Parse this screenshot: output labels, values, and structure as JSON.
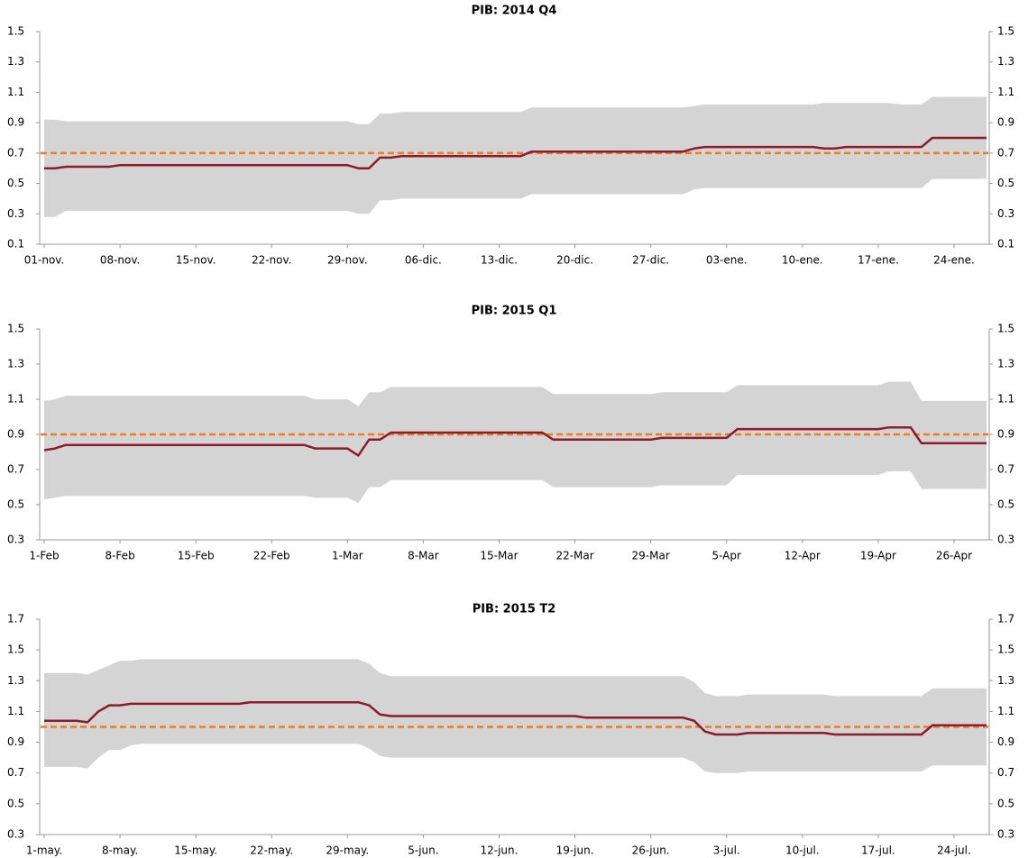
{
  "chart_data": [
    {
      "type": "line",
      "title": "PIB: 2014 Q4",
      "categories": [
        "01-nov.",
        null,
        null,
        null,
        null,
        null,
        null,
        "08-nov.",
        null,
        null,
        null,
        null,
        null,
        null,
        "15-nov.",
        null,
        null,
        null,
        null,
        null,
        null,
        "22-nov.",
        null,
        null,
        null,
        null,
        null,
        null,
        "29-nov.",
        null,
        null,
        null,
        null,
        null,
        null,
        "06-dic.",
        null,
        null,
        null,
        null,
        null,
        null,
        "13-dic.",
        null,
        null,
        null,
        null,
        null,
        null,
        "20-dic.",
        null,
        null,
        null,
        null,
        null,
        null,
        "27-dic.",
        null,
        null,
        null,
        null,
        null,
        null,
        "03-ene.",
        null,
        null,
        null,
        null,
        null,
        null,
        "10-ene.",
        null,
        null,
        null,
        null,
        null,
        null,
        "17-ene.",
        null,
        null,
        null,
        null,
        null,
        null,
        "24-ene.",
        null,
        null,
        null
      ],
      "series": [
        {
          "color": "#8c1c2c",
          "values": [
            0.6,
            0.6,
            0.61,
            0.61,
            0.61,
            0.61,
            0.61,
            0.62,
            0.62,
            0.62,
            0.62,
            0.62,
            0.62,
            0.62,
            0.62,
            0.62,
            0.62,
            0.62,
            0.62,
            0.62,
            0.62,
            0.62,
            0.62,
            0.62,
            0.62,
            0.62,
            0.62,
            0.62,
            0.62,
            0.6,
            0.6,
            0.67,
            0.67,
            0.68,
            0.68,
            0.68,
            0.68,
            0.68,
            0.68,
            0.68,
            0.68,
            0.68,
            0.68,
            0.68,
            0.68,
            0.71,
            0.71,
            0.71,
            0.71,
            0.71,
            0.71,
            0.71,
            0.71,
            0.71,
            0.71,
            0.71,
            0.71,
            0.71,
            0.71,
            0.71,
            0.73,
            0.74,
            0.74,
            0.74,
            0.74,
            0.74,
            0.74,
            0.74,
            0.74,
            0.74,
            0.74,
            0.74,
            0.73,
            0.73,
            0.74,
            0.74,
            0.74,
            0.74,
            0.74,
            0.74,
            0.74,
            0.74,
            0.8,
            0.8,
            0.8,
            0.8,
            0.8,
            0.8
          ]
        }
      ],
      "band": {
        "color": "#d4d4d4",
        "upper": [
          0.92,
          0.92,
          0.91,
          0.91,
          0.91,
          0.91,
          0.91,
          0.91,
          0.91,
          0.91,
          0.91,
          0.91,
          0.91,
          0.91,
          0.91,
          0.91,
          0.91,
          0.91,
          0.91,
          0.91,
          0.91,
          0.91,
          0.91,
          0.91,
          0.91,
          0.91,
          0.91,
          0.91,
          0.91,
          0.89,
          0.89,
          0.96,
          0.96,
          0.97,
          0.97,
          0.97,
          0.97,
          0.97,
          0.97,
          0.97,
          0.97,
          0.97,
          0.97,
          0.97,
          0.97,
          1.0,
          1.0,
          1.0,
          1.0,
          1.0,
          1.0,
          1.0,
          1.0,
          1.0,
          1.0,
          1.0,
          1.0,
          1.0,
          1.0,
          1.0,
          1.01,
          1.02,
          1.02,
          1.02,
          1.02,
          1.02,
          1.02,
          1.02,
          1.02,
          1.02,
          1.02,
          1.02,
          1.03,
          1.03,
          1.03,
          1.03,
          1.03,
          1.03,
          1.03,
          1.02,
          1.02,
          1.02,
          1.07,
          1.07,
          1.07,
          1.07,
          1.07,
          1.07
        ],
        "lower": [
          0.28,
          0.28,
          0.32,
          0.32,
          0.32,
          0.32,
          0.32,
          0.32,
          0.32,
          0.32,
          0.32,
          0.32,
          0.32,
          0.32,
          0.32,
          0.32,
          0.32,
          0.32,
          0.32,
          0.32,
          0.32,
          0.32,
          0.32,
          0.32,
          0.32,
          0.32,
          0.32,
          0.32,
          0.32,
          0.3,
          0.3,
          0.39,
          0.39,
          0.4,
          0.4,
          0.4,
          0.4,
          0.4,
          0.4,
          0.4,
          0.4,
          0.4,
          0.4,
          0.4,
          0.4,
          0.43,
          0.43,
          0.43,
          0.43,
          0.43,
          0.43,
          0.43,
          0.43,
          0.43,
          0.43,
          0.43,
          0.43,
          0.43,
          0.43,
          0.43,
          0.46,
          0.47,
          0.47,
          0.47,
          0.47,
          0.47,
          0.47,
          0.47,
          0.47,
          0.47,
          0.47,
          0.47,
          0.47,
          0.47,
          0.47,
          0.47,
          0.47,
          0.47,
          0.47,
          0.47,
          0.47,
          0.47,
          0.53,
          0.53,
          0.53,
          0.53,
          0.53,
          0.53
        ]
      },
      "reference": {
        "value": 0.7,
        "color": "#f07c1b"
      },
      "ylim": [
        0.1,
        1.5
      ],
      "yticks": [
        0.1,
        0.3,
        0.5,
        0.7,
        0.9,
        1.1,
        1.3,
        1.5
      ],
      "y2lim": [
        0.1,
        1.5
      ],
      "y2ticks": [
        0.1,
        0.3,
        0.5,
        0.7,
        0.9,
        1.1,
        1.3,
        1.5
      ]
    },
    {
      "type": "line",
      "title": "PIB: 2015 Q1",
      "categories": [
        "1-Feb",
        null,
        null,
        null,
        null,
        null,
        null,
        "8-Feb",
        null,
        null,
        null,
        null,
        null,
        null,
        "15-Feb",
        null,
        null,
        null,
        null,
        null,
        null,
        "22-Feb",
        null,
        null,
        null,
        null,
        null,
        null,
        "1-Mar",
        null,
        null,
        null,
        null,
        null,
        null,
        "8-Mar",
        null,
        null,
        null,
        null,
        null,
        null,
        "15-Mar",
        null,
        null,
        null,
        null,
        null,
        null,
        "22-Mar",
        null,
        null,
        null,
        null,
        null,
        null,
        "29-Mar",
        null,
        null,
        null,
        null,
        null,
        null,
        "5-Apr",
        null,
        null,
        null,
        null,
        null,
        null,
        "12-Apr",
        null,
        null,
        null,
        null,
        null,
        null,
        "19-Apr",
        null,
        null,
        null,
        null,
        null,
        null,
        "26-Apr",
        null,
        null,
        null
      ],
      "series": [
        {
          "color": "#8c1c2c",
          "values": [
            0.81,
            0.82,
            0.84,
            0.84,
            0.84,
            0.84,
            0.84,
            0.84,
            0.84,
            0.84,
            0.84,
            0.84,
            0.84,
            0.84,
            0.84,
            0.84,
            0.84,
            0.84,
            0.84,
            0.84,
            0.84,
            0.84,
            0.84,
            0.84,
            0.84,
            0.82,
            0.82,
            0.82,
            0.82,
            0.78,
            0.87,
            0.87,
            0.91,
            0.91,
            0.91,
            0.91,
            0.91,
            0.91,
            0.91,
            0.91,
            0.91,
            0.91,
            0.91,
            0.91,
            0.91,
            0.91,
            0.91,
            0.87,
            0.87,
            0.87,
            0.87,
            0.87,
            0.87,
            0.87,
            0.87,
            0.87,
            0.87,
            0.88,
            0.88,
            0.88,
            0.88,
            0.88,
            0.88,
            0.88,
            0.93,
            0.93,
            0.93,
            0.93,
            0.93,
            0.93,
            0.93,
            0.93,
            0.93,
            0.93,
            0.93,
            0.93,
            0.93,
            0.93,
            0.94,
            0.94,
            0.94,
            0.85,
            0.85,
            0.85,
            0.85,
            0.85,
            0.85,
            0.85
          ]
        }
      ],
      "band": {
        "color": "#d4d4d4",
        "upper": [
          1.09,
          1.1,
          1.12,
          1.12,
          1.12,
          1.12,
          1.12,
          1.12,
          1.12,
          1.12,
          1.12,
          1.12,
          1.12,
          1.12,
          1.12,
          1.12,
          1.12,
          1.12,
          1.12,
          1.12,
          1.12,
          1.12,
          1.12,
          1.12,
          1.12,
          1.1,
          1.1,
          1.1,
          1.1,
          1.06,
          1.14,
          1.14,
          1.17,
          1.17,
          1.17,
          1.17,
          1.17,
          1.17,
          1.17,
          1.17,
          1.17,
          1.17,
          1.17,
          1.17,
          1.17,
          1.17,
          1.17,
          1.13,
          1.13,
          1.13,
          1.13,
          1.13,
          1.13,
          1.13,
          1.13,
          1.13,
          1.13,
          1.14,
          1.14,
          1.14,
          1.14,
          1.14,
          1.14,
          1.14,
          1.18,
          1.18,
          1.18,
          1.18,
          1.18,
          1.18,
          1.18,
          1.18,
          1.18,
          1.18,
          1.18,
          1.18,
          1.18,
          1.18,
          1.2,
          1.2,
          1.2,
          1.09,
          1.09,
          1.09,
          1.09,
          1.09,
          1.09,
          1.09
        ],
        "lower": [
          0.53,
          0.54,
          0.55,
          0.55,
          0.55,
          0.55,
          0.55,
          0.55,
          0.55,
          0.55,
          0.55,
          0.55,
          0.55,
          0.55,
          0.55,
          0.55,
          0.55,
          0.55,
          0.55,
          0.55,
          0.55,
          0.55,
          0.55,
          0.55,
          0.55,
          0.54,
          0.54,
          0.54,
          0.54,
          0.51,
          0.6,
          0.6,
          0.64,
          0.64,
          0.64,
          0.64,
          0.64,
          0.64,
          0.64,
          0.64,
          0.64,
          0.64,
          0.64,
          0.64,
          0.64,
          0.64,
          0.64,
          0.6,
          0.6,
          0.6,
          0.6,
          0.6,
          0.6,
          0.6,
          0.6,
          0.6,
          0.6,
          0.61,
          0.61,
          0.61,
          0.61,
          0.61,
          0.61,
          0.61,
          0.67,
          0.67,
          0.67,
          0.67,
          0.67,
          0.67,
          0.67,
          0.67,
          0.67,
          0.67,
          0.67,
          0.67,
          0.67,
          0.67,
          0.69,
          0.69,
          0.69,
          0.59,
          0.59,
          0.59,
          0.59,
          0.59,
          0.59,
          0.59
        ]
      },
      "reference": {
        "value": 0.9,
        "color": "#f07c1b"
      },
      "ylim": [
        0.3,
        1.5
      ],
      "yticks": [
        0.3,
        0.5,
        0.7,
        0.9,
        1.1,
        1.3,
        1.5
      ],
      "y2lim": [
        0.3,
        1.5
      ],
      "y2ticks": [
        0.3,
        0.5,
        0.7,
        0.9,
        1.1,
        1.3,
        1.5
      ]
    },
    {
      "type": "line",
      "title": "PIB: 2015 T2",
      "categories": [
        "1-may.",
        null,
        null,
        null,
        null,
        null,
        null,
        "8-may.",
        null,
        null,
        null,
        null,
        null,
        null,
        "15-may.",
        null,
        null,
        null,
        null,
        null,
        null,
        "22-may.",
        null,
        null,
        null,
        null,
        null,
        null,
        "29-may.",
        null,
        null,
        null,
        null,
        null,
        null,
        "5-jun.",
        null,
        null,
        null,
        null,
        null,
        null,
        "12-jun.",
        null,
        null,
        null,
        null,
        null,
        null,
        "19-jun.",
        null,
        null,
        null,
        null,
        null,
        null,
        "26-jun.",
        null,
        null,
        null,
        null,
        null,
        null,
        "3-jul.",
        null,
        null,
        null,
        null,
        null,
        null,
        "10-jul.",
        null,
        null,
        null,
        null,
        null,
        null,
        "17-jul.",
        null,
        null,
        null,
        null,
        null,
        null,
        "24-jul.",
        null,
        null,
        null
      ],
      "series": [
        {
          "color": "#8c1c2c",
          "values": [
            1.04,
            1.04,
            1.04,
            1.04,
            1.03,
            1.1,
            1.14,
            1.14,
            1.15,
            1.15,
            1.15,
            1.15,
            1.15,
            1.15,
            1.15,
            1.15,
            1.15,
            1.15,
            1.15,
            1.16,
            1.16,
            1.16,
            1.16,
            1.16,
            1.16,
            1.16,
            1.16,
            1.16,
            1.16,
            1.16,
            1.14,
            1.08,
            1.07,
            1.07,
            1.07,
            1.07,
            1.07,
            1.07,
            1.07,
            1.07,
            1.07,
            1.07,
            1.07,
            1.07,
            1.07,
            1.07,
            1.07,
            1.07,
            1.07,
            1.07,
            1.06,
            1.06,
            1.06,
            1.06,
            1.06,
            1.06,
            1.06,
            1.06,
            1.06,
            1.06,
            1.04,
            0.97,
            0.95,
            0.95,
            0.95,
            0.96,
            0.96,
            0.96,
            0.96,
            0.96,
            0.96,
            0.96,
            0.96,
            0.95,
            0.95,
            0.95,
            0.95,
            0.95,
            0.95,
            0.95,
            0.95,
            0.95,
            1.01,
            1.01,
            1.01,
            1.01,
            1.01,
            1.01
          ]
        }
      ],
      "band": {
        "color": "#d4d4d4",
        "upper": [
          1.35,
          1.35,
          1.35,
          1.35,
          1.34,
          1.37,
          1.4,
          1.43,
          1.43,
          1.44,
          1.44,
          1.44,
          1.44,
          1.44,
          1.44,
          1.44,
          1.44,
          1.44,
          1.44,
          1.44,
          1.44,
          1.44,
          1.44,
          1.44,
          1.44,
          1.44,
          1.44,
          1.44,
          1.44,
          1.44,
          1.41,
          1.35,
          1.33,
          1.33,
          1.33,
          1.33,
          1.33,
          1.33,
          1.33,
          1.33,
          1.33,
          1.33,
          1.33,
          1.33,
          1.33,
          1.33,
          1.33,
          1.33,
          1.33,
          1.33,
          1.33,
          1.33,
          1.33,
          1.33,
          1.33,
          1.33,
          1.33,
          1.33,
          1.33,
          1.33,
          1.29,
          1.22,
          1.2,
          1.2,
          1.2,
          1.21,
          1.21,
          1.21,
          1.21,
          1.21,
          1.21,
          1.21,
          1.21,
          1.2,
          1.2,
          1.2,
          1.2,
          1.2,
          1.2,
          1.2,
          1.2,
          1.2,
          1.25,
          1.25,
          1.25,
          1.25,
          1.25,
          1.25
        ],
        "lower": [
          0.74,
          0.74,
          0.74,
          0.74,
          0.73,
          0.8,
          0.85,
          0.85,
          0.88,
          0.89,
          0.89,
          0.89,
          0.89,
          0.89,
          0.89,
          0.89,
          0.89,
          0.89,
          0.89,
          0.89,
          0.89,
          0.89,
          0.89,
          0.89,
          0.89,
          0.89,
          0.89,
          0.89,
          0.89,
          0.89,
          0.86,
          0.81,
          0.8,
          0.8,
          0.8,
          0.8,
          0.8,
          0.8,
          0.8,
          0.8,
          0.8,
          0.8,
          0.8,
          0.8,
          0.8,
          0.8,
          0.8,
          0.8,
          0.8,
          0.8,
          0.8,
          0.8,
          0.8,
          0.8,
          0.8,
          0.8,
          0.8,
          0.8,
          0.8,
          0.8,
          0.77,
          0.71,
          0.7,
          0.7,
          0.7,
          0.71,
          0.71,
          0.71,
          0.71,
          0.71,
          0.71,
          0.71,
          0.71,
          0.71,
          0.71,
          0.71,
          0.71,
          0.71,
          0.71,
          0.71,
          0.71,
          0.71,
          0.75,
          0.75,
          0.75,
          0.75,
          0.75,
          0.75
        ]
      },
      "reference": {
        "value": 1.0,
        "color": "#f07c1b"
      },
      "ylim": [
        0.3,
        1.7
      ],
      "yticks": [
        0.3,
        0.5,
        0.7,
        0.9,
        1.1,
        1.3,
        1.5,
        1.7
      ],
      "y2lim": [
        0.3,
        1.7
      ],
      "y2ticks": [
        0.3,
        0.5,
        0.7,
        0.9,
        1.1,
        1.3,
        1.5,
        1.7
      ]
    }
  ]
}
